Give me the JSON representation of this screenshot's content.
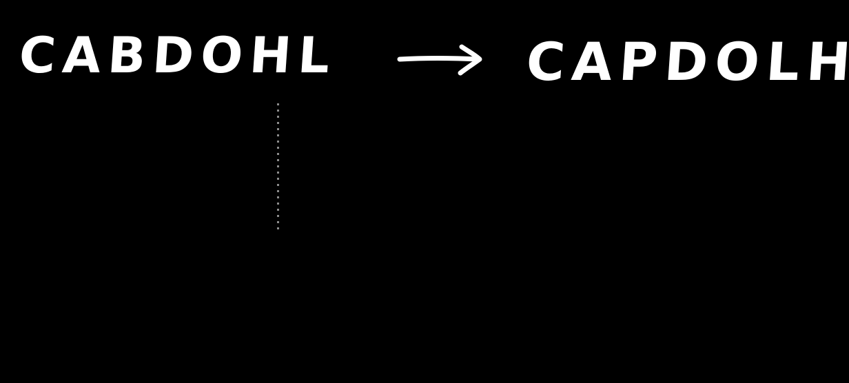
{
  "text": {
    "left_word": "CABDOHL",
    "right_word": "CAPDOLH"
  },
  "colors": {
    "background": "#000000",
    "ink": "#ffffff"
  },
  "icons": {
    "arrow": "right-arrow-icon"
  }
}
